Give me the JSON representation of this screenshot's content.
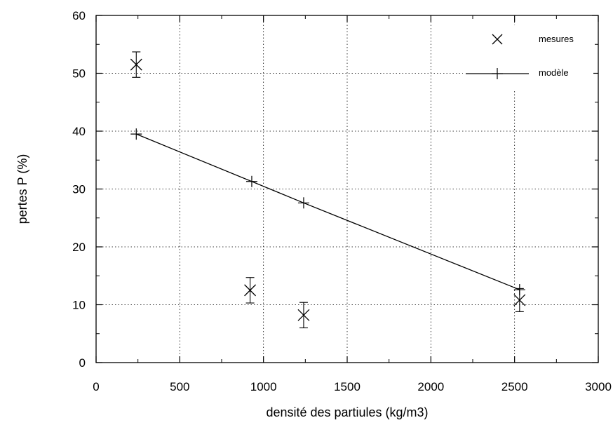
{
  "chart_data": {
    "type": "scatter",
    "title": "",
    "xlabel": "densité des partiules (kg/m3)",
    "ylabel": "pertes P (%)",
    "xlim": [
      0,
      3000
    ],
    "ylim": [
      0,
      60
    ],
    "xticks": [
      0,
      500,
      1000,
      1500,
      2000,
      2500,
      3000
    ],
    "yticks": [
      0,
      10,
      20,
      30,
      40,
      50,
      60
    ],
    "grid": true,
    "legend_position": "top-right",
    "series": [
      {
        "name": "mesures",
        "kind": "points",
        "marker": "x",
        "x": [
          240,
          920,
          1240,
          2530
        ],
        "y": [
          51.5,
          12.5,
          8.2,
          10.8
        ],
        "yerr": [
          2.2,
          2.2,
          2.2,
          2.0
        ]
      },
      {
        "name": "modèle",
        "kind": "line",
        "marker": "+",
        "x": [
          240,
          930,
          1240,
          2530
        ],
        "y": [
          39.5,
          31.3,
          27.6,
          12.6
        ]
      }
    ]
  }
}
